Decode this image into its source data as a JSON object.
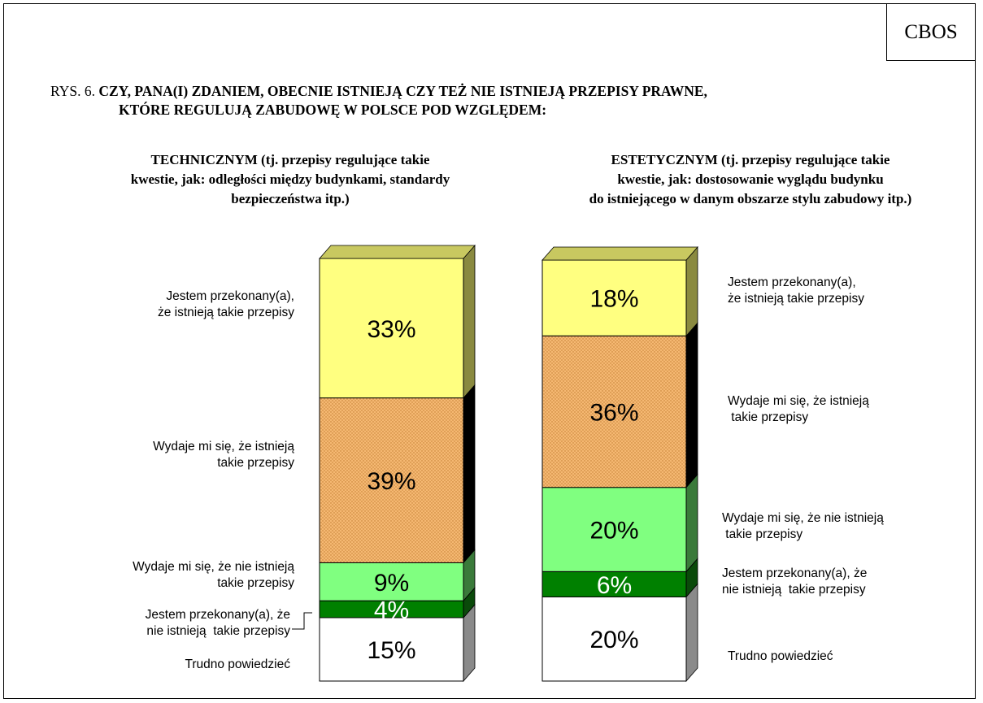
{
  "source": "CBOS",
  "figure_number": "RYS. 6.",
  "question": "CZY, PANA(I) ZDANIEM, OBECNIE ISTNIEJĄ CZY TEŻ NIE ISTNIEJĄ PRZEPISY PRAWNE, KTÓRE REGULUJĄ ZABUDOWĘ W POLSCE POD WZGLĘDEM:",
  "question_line1": "CZY, PANA(I) ZDANIEM, OBECNIE ISTNIEJĄ CZY TEŻ NIE ISTNIEJĄ PRZEPISY PRAWNE,",
  "question_line2": "KTÓRE REGULUJĄ ZABUDOWĘ W POLSCE POD WZGLĘDEM:",
  "colors": {
    "jestem_tak": "#ffff80",
    "wydaje_tak": "#f5b872",
    "wydaje_nie": "#80ff80",
    "jestem_nie": "#008000",
    "trudno": "#ffffff"
  },
  "chart_data": [
    {
      "type": "bar",
      "stacked": true,
      "title_bold": "TECHNICZNYM",
      "title_line1": "TECHNICZNYM (tj. przepisy regulujące takie",
      "title_line2": "kwestie, jak: odległości między budynkami, standardy",
      "title_line3": "bezpieczeństwa itp.)",
      "series": [
        {
          "name": "Trudno powiedzieć",
          "value": 15,
          "label": "15%"
        },
        {
          "name": "Jestem przekonany(a), że nie istnieją  takie przepisy",
          "value": 4,
          "label": "4%"
        },
        {
          "name": "Wydaje mi się, że nie istnieją takie przepisy",
          "value": 9,
          "label": "9%"
        },
        {
          "name": "Wydaje mi się, że istnieją takie przepisy",
          "value": 39,
          "label": "39%"
        },
        {
          "name": "Jestem przekonany(a), że istnieją takie przepisy",
          "value": 33,
          "label": "33%"
        }
      ],
      "category_labels": [
        "Jestem przekonany(a),\nże istnieją takie przepisy",
        "Wydaje mi się, że istnieją\ntakie przepisy",
        "Wydaje mi się, że nie istnieją\ntakie przepisy",
        "Jestem przekonany(a), że\nnie istnieją  takie przepisy",
        "Trudno powiedzieć"
      ]
    },
    {
      "type": "bar",
      "stacked": true,
      "title_bold": "ESTETYCZNYM",
      "title_line1": "ESTETYCZNYM (tj. przepisy regulujące takie",
      "title_line2": "kwestie, jak: dostosowanie wyglądu budynku",
      "title_line3": "do istniejącego w danym obszarze stylu zabudowy itp.)",
      "series": [
        {
          "name": "Trudno powiedzieć",
          "value": 20,
          "label": "20%"
        },
        {
          "name": "Jestem przekonany(a), że nie istnieją  takie przepisy",
          "value": 6,
          "label": "6%"
        },
        {
          "name": "Wydaje mi się, że nie istnieją takie przepisy",
          "value": 20,
          "label": "20%"
        },
        {
          "name": "Wydaje mi się, że istnieją takie przepisy",
          "value": 36,
          "label": "36%"
        },
        {
          "name": "Jestem przekonany(a), że istnieją takie przepisy",
          "value": 18,
          "label": "18%"
        }
      ],
      "category_labels": [
        "Jestem przekonany(a),\nże istnieją takie przepisy",
        "Wydaje mi się, że istnieją\n takie przepisy",
        "Wydaje mi się, że nie istnieją\n takie przepisy",
        "Jestem przekonany(a), że\nnie istnieją  takie przepisy",
        "Trudno powiedzieć"
      ]
    }
  ]
}
